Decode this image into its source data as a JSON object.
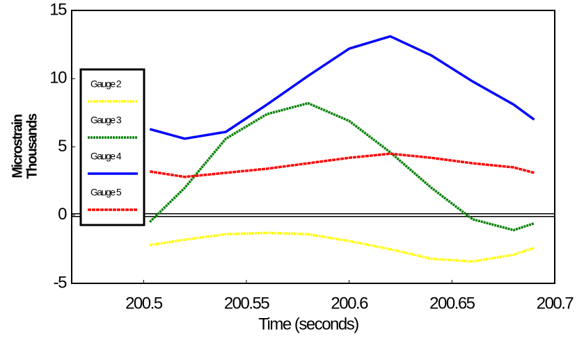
{
  "chart_data": {
    "type": "line",
    "xlabel": "Time (seconds)",
    "ylabel": [
      "Microstrain",
      "Thousands"
    ],
    "x": [
      200.503,
      200.52,
      200.54,
      200.56,
      200.58,
      200.6,
      200.62,
      200.64,
      200.66,
      200.68,
      200.69
    ],
    "series": [
      {
        "name": "Gauge 2",
        "color": "#ffff00",
        "values": [
          -2.2,
          -1.8,
          -1.4,
          -1.3,
          -1.4,
          -1.9,
          -2.5,
          -3.2,
          -3.4,
          -2.9,
          -2.4
        ]
      },
      {
        "name": "Gauge 3",
        "color": "#008000",
        "values": [
          -0.5,
          2.0,
          5.6,
          7.4,
          8.2,
          6.9,
          4.6,
          2.0,
          -0.3,
          -1.1,
          -0.6
        ]
      },
      {
        "name": "Gauge 4",
        "color": "#0000ff",
        "values": [
          6.3,
          5.6,
          6.1,
          8.1,
          10.2,
          12.2,
          13.1,
          11.7,
          9.8,
          8.1,
          7.0
        ]
      },
      {
        "name": "Gauge 5",
        "color": "#ff0000",
        "values": [
          3.2,
          2.8,
          3.1,
          3.4,
          3.8,
          4.2,
          4.5,
          4.2,
          3.8,
          3.5,
          3.1
        ]
      }
    ],
    "xlim": [
      200.465,
      200.7
    ],
    "xticks": [
      200.5,
      200.55,
      200.6,
      200.65,
      200.7
    ],
    "ylim": [
      -5,
      15
    ],
    "yticks": [
      -5,
      0,
      5,
      10,
      15
    ],
    "zero_line": true,
    "grid": false,
    "legend": "left"
  }
}
